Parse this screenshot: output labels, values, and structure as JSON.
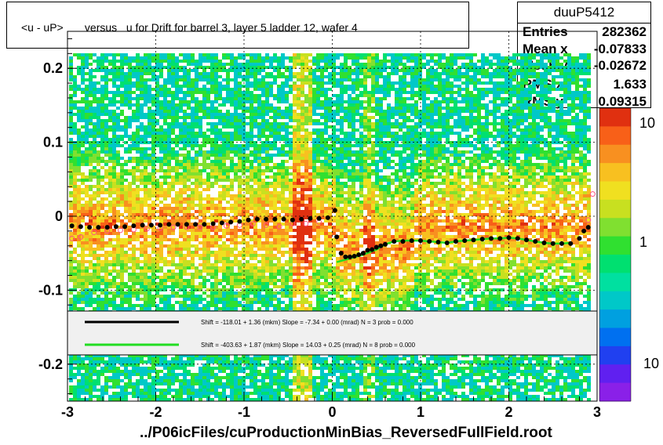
{
  "title": "<u - uP>       versus   u for Drift for barrel 3, layer 5 ladder 12, wafer 4",
  "stats": {
    "name": "duuP5412",
    "rows": [
      {
        "label": "Entries",
        "value": "282362"
      },
      {
        "label": "Mean x",
        "value": "-0.07833"
      },
      {
        "label": "Mean y",
        "value": "-0.02672"
      },
      {
        "label": "RMS x",
        "value": "1.633"
      },
      {
        "label": "RMS y",
        "value": "0.09315"
      }
    ]
  },
  "x_axis_title": "../P06icFiles/cuProductionMinBias_ReversedFullField.root",
  "legend": [
    {
      "color": "#000000",
      "text": "Shift =  -118.01 + 1.36 (mkm) Slope =    -7.34 + 0.00 (mrad)  N = 3 prob = 0.000"
    },
    {
      "color": "#22dd22",
      "text": "Shift =  -403.63 + 1.87 (mkm) Slope =    14.03 + 0.25 (mrad)  N = 8 prob = 0.000"
    }
  ],
  "colorbar_labels": [
    "10",
    "1",
    "10"
  ],
  "chart_data": {
    "type": "heatmap",
    "xlim": [
      -3,
      3
    ],
    "ylim": [
      -0.25,
      0.25
    ],
    "x_ticks": [
      -3,
      -2,
      -1,
      0,
      1,
      2,
      3
    ],
    "x_tick_labels": [
      "-3",
      "-2",
      "-1",
      "0",
      "1",
      "2",
      "3"
    ],
    "y_ticks": [
      -0.2,
      -0.1,
      0,
      0.1,
      0.2
    ],
    "y_tick_labels": [
      "-0.2",
      "-0.1",
      "0",
      "0.1",
      "0.2"
    ],
    "grid": true,
    "profile_black": {
      "x": [
        -2.95,
        -2.85,
        -2.75,
        -2.65,
        -2.55,
        -2.45,
        -2.35,
        -2.25,
        -2.15,
        -2.05,
        -1.95,
        -1.85,
        -1.75,
        -1.65,
        -1.55,
        -1.45,
        -1.35,
        -1.25,
        -1.15,
        -1.05,
        -0.95,
        -0.85,
        -0.75,
        -0.65,
        -0.55,
        -0.45,
        -0.35,
        -0.25,
        -0.15,
        -0.05,
        0.03,
        0.05,
        0.1,
        0.15,
        0.2,
        0.25,
        0.3,
        0.35,
        0.4,
        0.45,
        0.5,
        0.55,
        0.6,
        0.7,
        0.8,
        0.9,
        1.0,
        1.1,
        1.2,
        1.3,
        1.4,
        1.5,
        1.6,
        1.7,
        1.8,
        1.9,
        2.0,
        2.1,
        2.2,
        2.3,
        2.4,
        2.5,
        2.6,
        2.7,
        2.8,
        2.85,
        2.9
      ],
      "y": [
        -0.013,
        -0.014,
        -0.015,
        -0.015,
        -0.015,
        -0.014,
        -0.014,
        -0.013,
        -0.012,
        -0.012,
        -0.012,
        -0.011,
        -0.011,
        -0.011,
        -0.011,
        -0.011,
        -0.01,
        -0.009,
        -0.008,
        -0.007,
        -0.005,
        -0.004,
        -0.004,
        -0.004,
        -0.004,
        -0.005,
        -0.004,
        -0.003,
        -0.003,
        -0.002,
        0.008,
        -0.028,
        -0.05,
        -0.055,
        -0.055,
        -0.054,
        -0.052,
        -0.05,
        -0.046,
        -0.045,
        -0.042,
        -0.04,
        -0.038,
        -0.034,
        -0.034,
        -0.033,
        -0.033,
        -0.034,
        -0.035,
        -0.036,
        -0.034,
        -0.033,
        -0.032,
        -0.031,
        -0.03,
        -0.03,
        -0.029,
        -0.03,
        -0.032,
        -0.034,
        -0.036,
        -0.037,
        -0.037,
        -0.037,
        -0.03,
        -0.02,
        -0.015
      ]
    },
    "profile_open": {
      "x": [
        -2.95,
        -2.85,
        -2.7,
        -2.55,
        -2.4,
        -2.25,
        -2.1,
        -1.95,
        -1.8,
        -1.65,
        -1.5,
        -1.35,
        -1.2,
        -1.05,
        -0.9,
        -0.75,
        -0.6,
        -0.45,
        -0.3,
        -0.15,
        2.9,
        2.95
      ],
      "y": [
        -0.03,
        -0.028,
        -0.022,
        -0.02,
        -0.019,
        -0.018,
        -0.017,
        -0.016,
        -0.015,
        -0.015,
        -0.015,
        -0.015,
        -0.013,
        -0.012,
        -0.01,
        -0.012,
        -0.014,
        -0.01,
        -0.01,
        -0.008,
        -0.005,
        0.03
      ]
    },
    "fit_green": {
      "x": [
        0.05,
        0.2,
        0.35,
        0.5,
        0.6,
        0.7,
        0.8,
        0.9,
        1.0,
        1.1,
        1.2,
        1.3,
        1.4,
        1.5,
        1.6,
        1.7,
        1.8,
        1.9,
        2.0,
        2.1,
        2.2,
        2.3,
        2.4,
        2.5,
        2.6,
        2.7
      ],
      "y": [
        -0.062,
        -0.057,
        -0.052,
        -0.045,
        -0.038,
        -0.034,
        -0.033,
        -0.033,
        -0.033,
        -0.034,
        -0.035,
        -0.036,
        -0.034,
        -0.033,
        -0.032,
        -0.031,
        -0.03,
        -0.03,
        -0.029,
        -0.03,
        -0.032,
        -0.034,
        -0.036,
        -0.037,
        -0.037,
        -0.036
      ]
    }
  }
}
